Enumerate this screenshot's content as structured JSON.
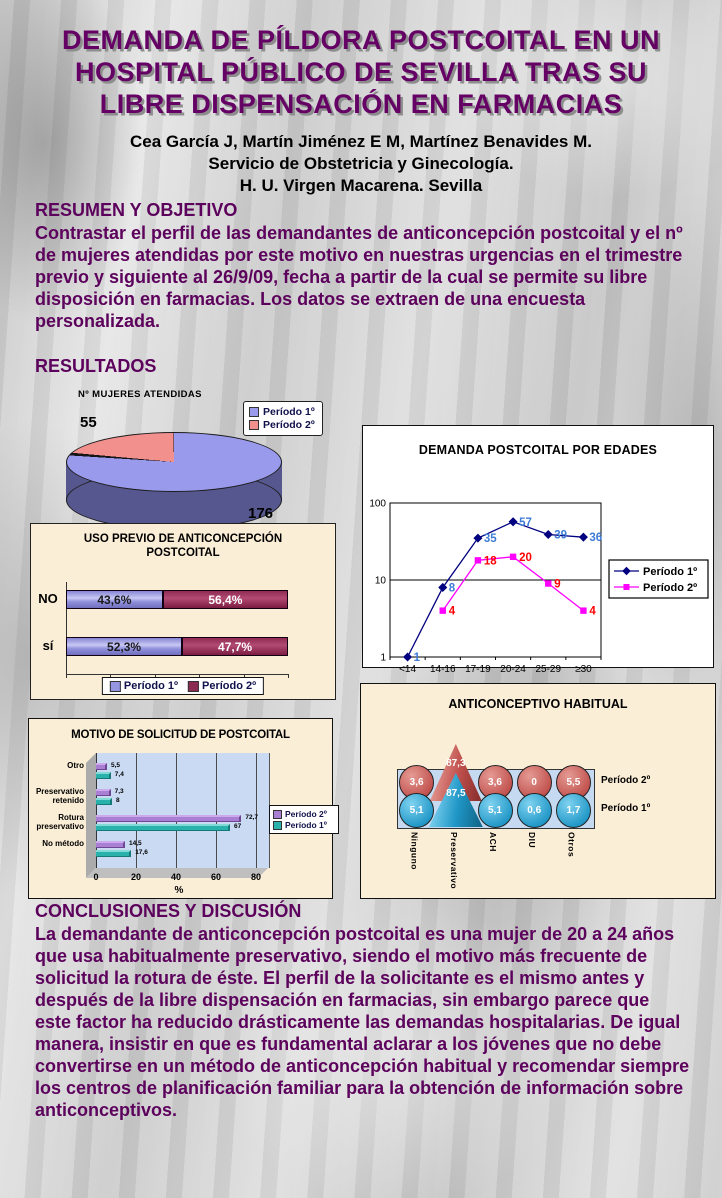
{
  "poster": {
    "title_lines": [
      "DEMANDA DE PÍLDORA POSTCOITAL EN UN",
      "HOSPITAL PÚBLICO DE SEVILLA TRAS SU",
      "LIBRE DISPENSACIÓN EN FARMACIAS"
    ],
    "authors_lines": [
      "Cea García  J, Martín Jiménez E M, Martínez Benavides M.",
      "Servicio de Obstetricia y Ginecología.",
      "H. U. Virgen Macarena. Sevilla"
    ],
    "sections": {
      "resumen_heading": "RESUMEN Y OBJETIVO",
      "resumen_body": "Contrastar el perfil de las demandantes de anticoncepción postcoital y el nº de mujeres atendidas por este motivo en nuestras urgencias en el trimestre previo y siguiente al 26/9/09, fecha a partir de la cual se permite su libre disposición en farmacias. Los datos se extraen de una encuesta personalizada.",
      "resultados_heading": "RESULTADOS",
      "conclusiones_heading": "CONCLUSIONES Y DISCUSIÓN",
      "conclusiones_body": "La demandante de anticoncepción postcoital es una mujer de 20 a 24 años que usa habitualmente preservativo, siendo el motivo más frecuente de solicitud la rotura de éste. El perfil de la solicitante es el mismo antes y después de la libre dispensación en farmacias, sin embargo parece que este factor ha reducido drásticamente las demandas hospitalarias. De igual manera, insistir en que es fundamental aclarar a los jóvenes que no debe convertirse en un método de anticoncepción habitual y recomendar siempre los centros de planificación familiar para la obtención de información sobre anticonceptivos."
    }
  },
  "chart_data": [
    {
      "type": "pie",
      "title": "Nº MUJERES ATENDIDAS",
      "legend": [
        {
          "label": "Período 1º",
          "color": "#9a9aec"
        },
        {
          "label": "Período 2º",
          "color": "#f2908e"
        }
      ],
      "values": [
        176,
        55
      ],
      "point_labels": [
        "176",
        "55"
      ],
      "side_color": "#57578f"
    },
    {
      "type": "line",
      "title": "DEMANDA POSTCOITAL POR EDADES",
      "categories": [
        "<14",
        "14-16",
        "17-19",
        "20-24",
        "25-29",
        "≥30"
      ],
      "y_scale": "log",
      "y_ticks": [
        1,
        10,
        100
      ],
      "series": [
        {
          "name": "Período 1º",
          "color": "#000080",
          "label_color": "#3e7cd6",
          "marker": "diamond",
          "values": [
            1,
            8,
            35,
            57,
            39,
            36
          ],
          "labels": [
            "1",
            "8",
            "35",
            "57",
            "39",
            "36"
          ]
        },
        {
          "name": "Período 2º",
          "color": "#ff00ff",
          "label_color": "#ff0000",
          "marker": "square",
          "values": [
            null,
            4,
            18,
            20,
            9,
            4
          ],
          "labels": [
            "",
            "4",
            "18",
            "20",
            "9",
            "4"
          ]
        }
      ]
    },
    {
      "type": "stacked-bar",
      "title": "USO PREVIO DE ANTICONCEPCIÓN POSTCOITAL",
      "categories": [
        "NO",
        "sí"
      ],
      "series": [
        {
          "name": "Período 1º",
          "color": "#9595e2",
          "values": [
            43.6,
            52.3
          ],
          "labels": [
            "43,6%",
            "52,3%"
          ],
          "label_color": "#1a1a1a"
        },
        {
          "name": "Período 2º",
          "color": "#8c2b52",
          "values": [
            56.4,
            47.7
          ],
          "labels": [
            "56,4%",
            "47,7%"
          ],
          "label_color": "#ffffff"
        }
      ]
    },
    {
      "type": "bar-3d",
      "title": "MOTIVO DE SOLICITUD DE POSTCOITAL",
      "categories": [
        "Otro",
        "Preservativo retenido",
        "Rotura preservativo",
        "No método"
      ],
      "x_ticks": [
        0,
        20,
        40,
        60,
        80
      ],
      "xlabel": "%",
      "series": [
        {
          "name": "Período 2º",
          "color": "#a97fd4",
          "light": "#cda9ee",
          "dark": "#6e4694",
          "values": [
            5.5,
            7.3,
            72.7,
            14.5
          ],
          "labels": [
            "5,5",
            "7,3",
            "72,7",
            "14,5"
          ]
        },
        {
          "name": "Período 1º",
          "color": "#29b1ac",
          "light": "#82dad6",
          "dark": "#157a77",
          "values": [
            7.4,
            8,
            67,
            17.6
          ],
          "labels": [
            "7,4",
            "8",
            "67",
            "17,6"
          ]
        }
      ]
    },
    {
      "type": "bubble-cone",
      "title": "ANTICONCEPTIVO HABITUAL",
      "categories": [
        "Ninguno",
        "Preservativo",
        "ACH",
        "DIU",
        "Otros"
      ],
      "series": [
        {
          "name": "Período 2º",
          "color": "#c0504d",
          "light": "#e59a93",
          "dark": "#8e3230",
          "values": [
            3.6,
            87.3,
            3.6,
            0,
            5.5
          ],
          "labels": [
            "3,6",
            "87,3",
            "3,6",
            "0",
            "5,5"
          ]
        },
        {
          "name": "Período 1º",
          "color": "#1f96c6",
          "light": "#7fd2f0",
          "dark": "#136a8e",
          "values": [
            5.1,
            87.5,
            5.1,
            0.6,
            1.7
          ],
          "labels": [
            "5,1",
            "87,5",
            "5,1",
            "0,6",
            "1,7"
          ]
        }
      ]
    }
  ]
}
